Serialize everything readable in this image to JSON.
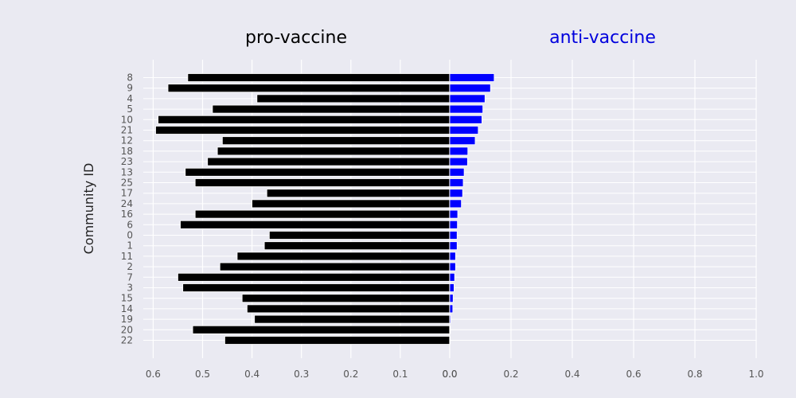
{
  "chart_data": {
    "type": "bar",
    "orientation": "horizontal",
    "ylabel": "Community ID",
    "categories": [
      "8",
      "9",
      "4",
      "5",
      "10",
      "21",
      "12",
      "18",
      "23",
      "13",
      "25",
      "17",
      "24",
      "16",
      "6",
      "0",
      "1",
      "11",
      "2",
      "7",
      "3",
      "15",
      "14",
      "19",
      "20",
      "22"
    ],
    "panels": [
      {
        "title": "pro-vaccine",
        "color": "#000000",
        "title_color": "#000000",
        "xlim": [
          0.62,
          0
        ],
        "xticks": [
          "0.6",
          "0.5",
          "0.4",
          "0.3",
          "0.2",
          "0.1",
          "0.0"
        ],
        "xtick_values": [
          0.6,
          0.5,
          0.4,
          0.3,
          0.2,
          0.1,
          0.0
        ],
        "values": [
          0.53,
          0.57,
          0.39,
          0.48,
          0.59,
          0.595,
          0.46,
          0.47,
          0.49,
          0.535,
          0.515,
          0.37,
          0.4,
          0.515,
          0.545,
          0.365,
          0.375,
          0.43,
          0.465,
          0.55,
          0.54,
          0.42,
          0.41,
          0.395,
          0.52,
          0.455
        ]
      },
      {
        "title": "anti-vaccine",
        "color": "#0000ff",
        "title_color": "#0000dd",
        "xlim": [
          0,
          1.0
        ],
        "xticks": [
          "0.0",
          "0.2",
          "0.4",
          "0.6",
          "0.8",
          "1.0"
        ],
        "xtick_values": [
          0.0,
          0.2,
          0.4,
          0.6,
          0.8,
          1.0
        ],
        "values": [
          0.145,
          0.133,
          0.115,
          0.108,
          0.105,
          0.093,
          0.083,
          0.059,
          0.058,
          0.047,
          0.044,
          0.042,
          0.038,
          0.026,
          0.025,
          0.024,
          0.024,
          0.019,
          0.019,
          0.016,
          0.014,
          0.011,
          0.01,
          0.003,
          0.002,
          0.001
        ]
      }
    ]
  }
}
